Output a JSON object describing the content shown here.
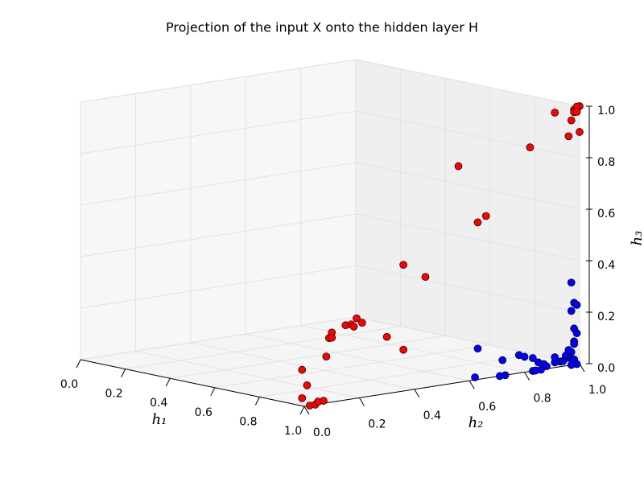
{
  "chart_data": {
    "type": "scatter3d",
    "title": "Projection of the input X onto the hidden layer H",
    "xlabel": "h₁",
    "ylabel": "h₂",
    "zlabel": "h₃",
    "xlim": [
      0,
      1
    ],
    "ylim": [
      0,
      1
    ],
    "zlim": [
      0,
      1
    ],
    "xticks": [
      {
        "value": 0,
        "label": "0.0"
      },
      0.2,
      0.4,
      0.6,
      0.8,
      {
        "value": 1,
        "label": "1.0"
      }
    ],
    "yticks": [
      {
        "value": 0,
        "label": "0.0"
      },
      0.2,
      0.4,
      0.6,
      0.8,
      {
        "value": 1,
        "label": "1.0"
      }
    ],
    "zticks": [
      {
        "value": 0,
        "label": "0.0"
      },
      0.2,
      0.4,
      0.6,
      0.8,
      {
        "value": 1,
        "label": "1.0"
      }
    ],
    "grid": true,
    "series": [
      {
        "color": "#ff0000",
        "x": [
          0.99,
          1,
          0.99,
          1,
          1,
          1,
          1,
          1,
          1,
          1,
          1,
          1,
          1,
          1,
          1,
          1,
          1,
          1,
          1,
          1,
          1,
          1,
          1,
          1,
          1,
          1,
          1,
          1,
          1,
          1,
          1,
          1,
          1
        ],
        "y": [
          0,
          0.01,
          0,
          0.02,
          0.04,
          0.05,
          0.07,
          0.08,
          0.09,
          0.1,
          0.1,
          0.15,
          0.17,
          0.19,
          0.21,
          0.18,
          0.3,
          0.36,
          0.36,
          0.44,
          0.56,
          0.63,
          0.66,
          0.82,
          0.91,
          0.96,
          1,
          0.97,
          0.98,
          1,
          0.99,
          0.98,
          0.99
        ],
        "z": [
          0.14,
          0.08,
          0.03,
          0,
          0,
          0.01,
          0.01,
          0.18,
          0.25,
          0.27,
          0.25,
          0.29,
          0.29,
          0.31,
          0.29,
          0.28,
          0.22,
          0.16,
          0.49,
          0.43,
          0.84,
          0.61,
          0.63,
          0.87,
          0.99,
          0.89,
          0.9,
          0.95,
          0.99,
          1,
          1,
          0.98,
          0.98
        ]
      },
      {
        "color": "#0000ff",
        "x": [
          1,
          1,
          1,
          1,
          1,
          1,
          1,
          1,
          1,
          1,
          1,
          1,
          1,
          1,
          1,
          1,
          1,
          1,
          1,
          1,
          1,
          1,
          1,
          1,
          1,
          1,
          1,
          1,
          1,
          1,
          1,
          1,
          1,
          1
        ],
        "y": [
          0.97,
          0.98,
          0.99,
          0.97,
          0.98,
          0.99,
          0.98,
          0.98,
          0.97,
          0.96,
          0.98,
          0.63,
          0.62,
          0.71,
          0.73,
          0.72,
          0.78,
          0.8,
          0.83,
          0.85,
          0.87,
          0.83,
          0.84,
          0.86,
          0.88,
          0.91,
          0.93,
          0.94,
          0.95,
          0.91,
          0.95,
          0.96,
          0.99,
          0.97
        ],
        "z": [
          0.32,
          0.24,
          0.23,
          0.21,
          0.14,
          0.12,
          0.09,
          0.08,
          0.05,
          0.03,
          0.02,
          0.12,
          0.01,
          0,
          0,
          0.06,
          0.07,
          0.06,
          0.05,
          0.03,
          0.02,
          0,
          0,
          0,
          0.01,
          0.02,
          0.02,
          0.02,
          0.03,
          0.04,
          0.04,
          0.06,
          0,
          0
        ]
      }
    ]
  }
}
